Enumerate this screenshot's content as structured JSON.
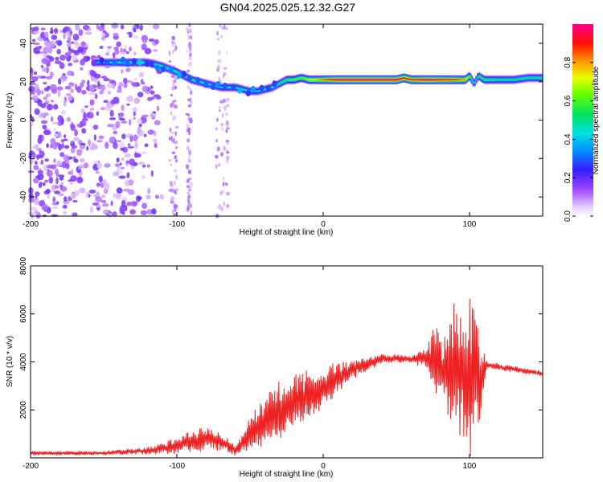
{
  "title": "GN04.2025.025.12.32.G27",
  "chart_data": [
    {
      "type": "heatmap",
      "xlabel": "Height of straight line (km)",
      "ylabel": "Frequency (Hz)",
      "xlim": [
        -200,
        150
      ],
      "ylim": [
        -50,
        50
      ],
      "x_ticks": [
        -200,
        -100,
        0,
        100
      ],
      "y_ticks": [
        -40,
        -20,
        0,
        20,
        40
      ],
      "colorbar": {
        "label": "Normalized spectral amplitude",
        "range": [
          0.0,
          1.0
        ],
        "ticks": [
          0.0,
          0.2,
          0.4,
          0.6,
          0.8
        ],
        "colormap": "white-violet-blue-cyan-green-yellow-red-magenta"
      },
      "ridge_trace": {
        "x": [
          -157,
          -150,
          -140,
          -130,
          -120,
          -110,
          -100,
          -90,
          -80,
          -70,
          -60,
          -50,
          -45,
          -40,
          -35,
          -30,
          -25,
          -20,
          -15,
          -10,
          -5,
          0,
          10,
          20,
          30,
          40,
          50,
          55,
          60,
          70,
          80,
          90,
          97,
          100,
          103,
          106,
          110,
          120,
          130,
          140,
          150
        ],
        "y": [
          30,
          30,
          30,
          30,
          30,
          28,
          25,
          21,
          19,
          17,
          17,
          15,
          15,
          16,
          17,
          19,
          21,
          21,
          22,
          21,
          21,
          21,
          21,
          21,
          21,
          21,
          21,
          22,
          21,
          21,
          21,
          21,
          21,
          23,
          19,
          23,
          21,
          21,
          21,
          22,
          22
        ],
        "peak_amplitude": [
          0.35,
          0.4,
          0.45,
          0.5,
          0.45,
          0.5,
          0.5,
          0.5,
          0.45,
          0.4,
          0.45,
          0.4,
          0.4,
          0.45,
          0.45,
          0.5,
          0.55,
          0.6,
          0.6,
          0.7,
          0.75,
          0.85,
          1.0,
          1.0,
          1.0,
          1.0,
          1.0,
          0.9,
          0.9,
          1.0,
          0.95,
          0.9,
          0.8,
          0.6,
          0.45,
          0.5,
          0.55,
          0.5,
          0.5,
          0.5,
          0.5
        ]
      },
      "noise_region": {
        "x_range": [
          -200,
          -110
        ],
        "sparse_bands_x": [
          [
            -105,
            -100
          ],
          [
            -93,
            -90
          ],
          [
            -73,
            -65
          ]
        ]
      }
    },
    {
      "type": "line",
      "xlabel": "Height of straight line (km)",
      "ylabel": "SNR (10 * v/v)",
      "xlim": [
        -200,
        150
      ],
      "ylim": [
        0,
        8000
      ],
      "x_ticks": [
        -200,
        -100,
        0,
        100
      ],
      "y_ticks": [
        2000,
        4000,
        6000,
        8000
      ],
      "series": [
        {
          "color": "#ee2222",
          "envelope": {
            "x": [
              -200,
              -150,
              -120,
              -100,
              -90,
              -80,
              -70,
              -60,
              -50,
              -40,
              -30,
              -20,
              -10,
              0,
              10,
              20,
              30,
              40,
              50,
              60,
              65,
              70,
              75,
              80,
              85,
              90,
              95,
              100,
              105,
              108,
              112,
              120,
              130,
              140,
              150
            ],
            "mean": [
              200,
              200,
              300,
              500,
              700,
              800,
              700,
              300,
              1000,
              1500,
              2000,
              2400,
              2600,
              2900,
              3300,
              3700,
              3900,
              4100,
              4150,
              4100,
              4100,
              4200,
              4100,
              3800,
              3600,
              3600,
              3700,
              3600,
              3500,
              3400,
              3900,
              3800,
              3700,
              3600,
              3500
            ],
            "amplitude": [
              80,
              80,
              150,
              300,
              450,
              500,
              350,
              200,
              700,
              900,
              1100,
              1100,
              1000,
              800,
              600,
              400,
              300,
              200,
              150,
              150,
              300,
              400,
              1200,
              1500,
              2000,
              2600,
              2800,
              3500,
              2400,
              1500,
              150,
              120,
              120,
              120,
              120
            ]
          }
        }
      ]
    }
  ]
}
